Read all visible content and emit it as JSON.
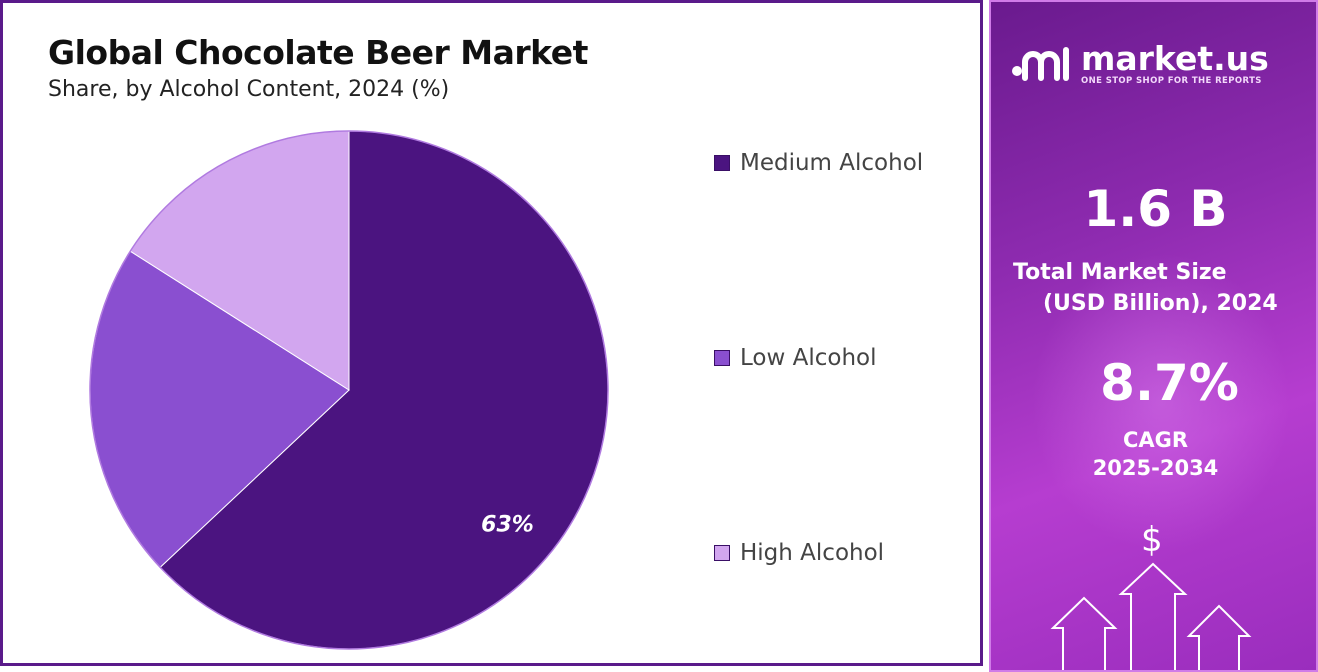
{
  "chart_data": {
    "type": "pie",
    "title": "Global Chocolate Beer Market",
    "subtitle": "Share, by Alcohol Content, 2024 (%)",
    "slices": [
      {
        "label": "Medium Alcohol",
        "value": 63,
        "color": "#4b1480",
        "data_label": "63%"
      },
      {
        "label": "Low Alcohol",
        "value": 21,
        "color": "#8a4fd0",
        "data_label": ""
      },
      {
        "label": "High Alcohol",
        "value": 16,
        "color": "#d2a6ef",
        "data_label": ""
      }
    ],
    "start_angle_deg": 0,
    "direction": "clockwise",
    "legend_position": "right"
  },
  "brand": {
    "name": "market.us",
    "tagline": "ONE STOP SHOP FOR THE REPORTS"
  },
  "stats": {
    "market_size_value": "1.6 B",
    "market_size_label_1": "Total Market Size",
    "market_size_label_2": "(USD Billion), 2024",
    "cagr_value": "8.7%",
    "cagr_label_1": "CAGR",
    "cagr_label_2": "2025-2034"
  },
  "decor": {
    "currency_symbol": "$",
    "icons": [
      "market-us-logo-icon",
      "dollar-sign-icon",
      "up-arrow-icon"
    ]
  }
}
